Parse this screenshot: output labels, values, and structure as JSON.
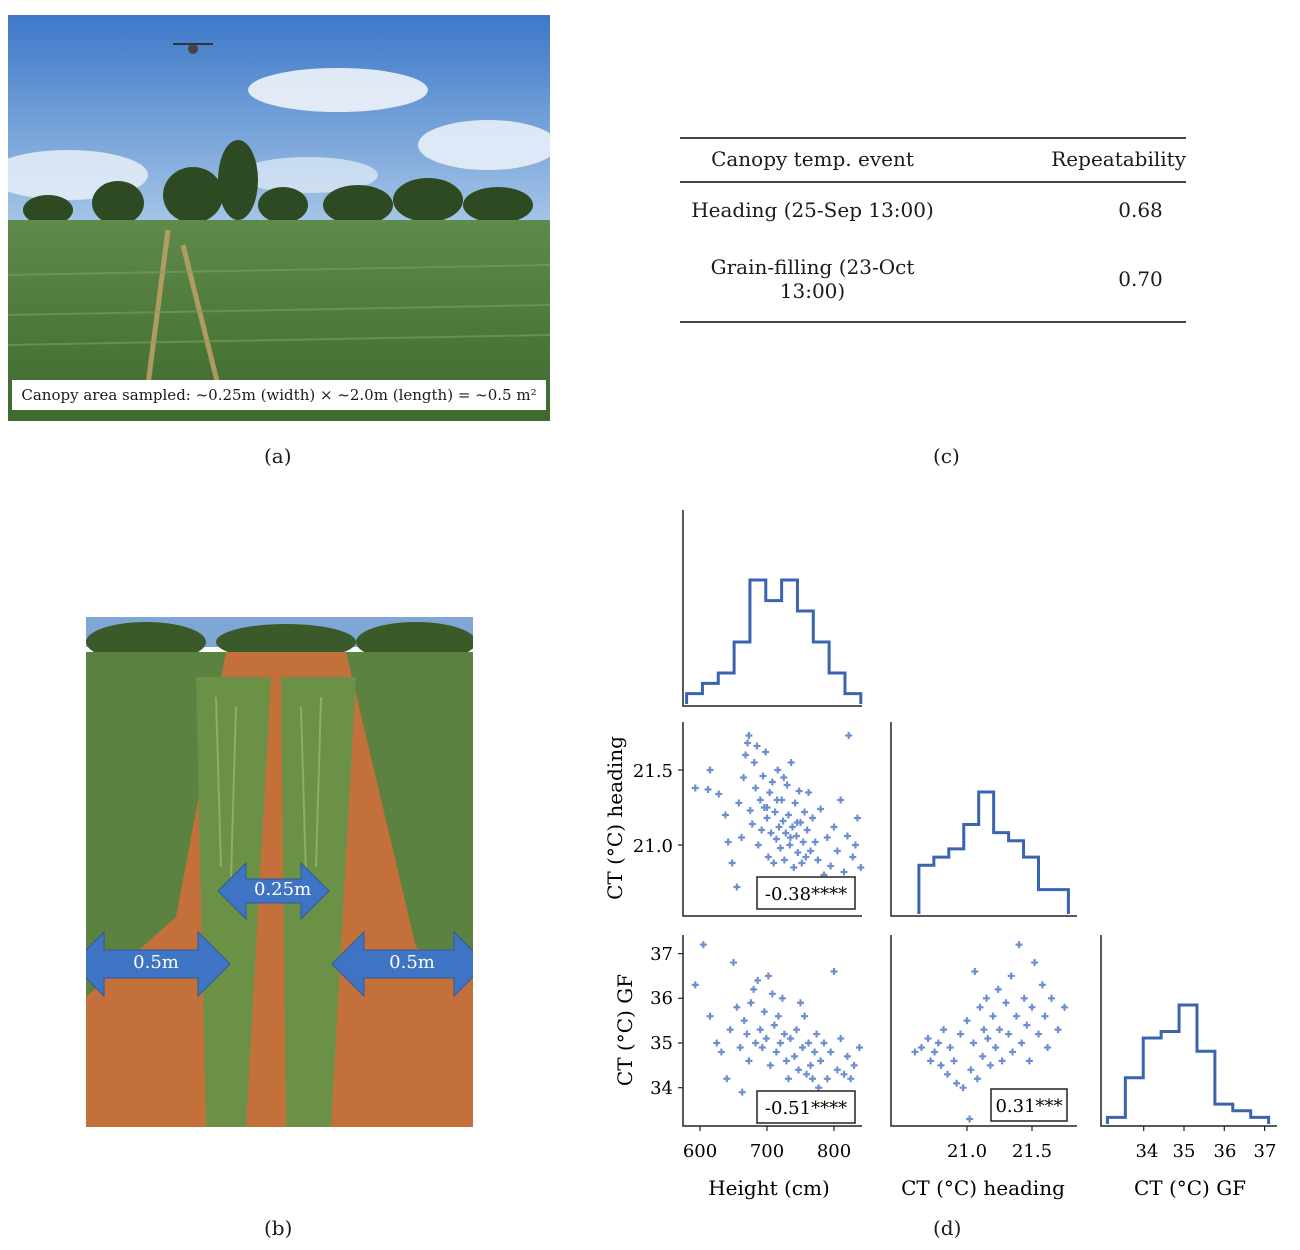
{
  "panel_labels": {
    "a": "(a)",
    "b": "(b)",
    "c": "(c)",
    "d": "(d)"
  },
  "photo_a": {
    "caption": "Canopy area sampled: ~0.25m (width) × ~2.0m (length) = ~0.5 m²"
  },
  "photo_b": {
    "arrow_center": "0.25m",
    "arrow_left": "0.5m",
    "arrow_right": "0.5m"
  },
  "table": {
    "headers": [
      "Canopy temp. event",
      "Repeatability"
    ],
    "rows": [
      {
        "event": "Heading (25-Sep 13:00)",
        "value": "0.68"
      },
      {
        "event": "Grain-filling (23-Oct 13:00)",
        "value": "0.70"
      }
    ]
  },
  "colors": {
    "series": "#3a63b0",
    "points": "#6e8fcf",
    "sky": "#5a8fd6",
    "soil": "#c4703a",
    "crop": "#4f7a3a"
  },
  "chart_data": {
    "type": "scatter",
    "variables": [
      "Height (cm)",
      "CT (°C) heading",
      "CT (°C) GF"
    ],
    "xlabels": [
      "Height (cm)",
      "CT (°C) heading",
      "CT (°C) GF"
    ],
    "ylabels": [
      "CT (°C) heading",
      "CT (°C) GF"
    ],
    "height_ticks": [
      "600",
      "700",
      "800"
    ],
    "heading_ticks": [
      "21.0",
      "21.5"
    ],
    "gf_ticks": [
      "34",
      "35",
      "36",
      "37"
    ],
    "correlations": {
      "height_vs_heading": "-0.38****",
      "height_vs_gf": "-0.51****",
      "heading_vs_gf": "0.31***"
    },
    "hist_height": {
      "range": [
        580,
        840
      ],
      "counts": [
        1,
        2,
        3,
        6,
        12,
        10,
        12,
        9,
        6,
        3,
        1
      ]
    },
    "hist_heading": {
      "range": [
        20.63,
        21.78
      ],
      "counts": [
        6,
        7,
        8,
        11,
        15,
        10,
        9,
        7,
        3,
        3
      ]
    },
    "hist_gf": {
      "range": [
        33.1,
        37.1
      ],
      "counts": [
        1,
        7,
        13,
        14,
        18,
        11,
        3,
        2,
        1
      ]
    },
    "scatter_height_heading": [
      [
        593,
        21.38
      ],
      [
        612,
        21.37
      ],
      [
        615,
        21.5
      ],
      [
        628,
        21.34
      ],
      [
        638,
        21.2
      ],
      [
        642,
        21.02
      ],
      [
        648,
        20.88
      ],
      [
        655,
        20.72
      ],
      [
        658,
        21.28
      ],
      [
        662,
        21.05
      ],
      [
        665,
        21.45
      ],
      [
        668,
        21.6
      ],
      [
        671,
        21.68
      ],
      [
        673,
        21.73
      ],
      [
        675,
        21.23
      ],
      [
        678,
        21.14
      ],
      [
        681,
        21.55
      ],
      [
        683,
        21.38
      ],
      [
        685,
        21.66
      ],
      [
        687,
        21.0
      ],
      [
        690,
        21.3
      ],
      [
        692,
        21.1
      ],
      [
        694,
        21.46
      ],
      [
        696,
        21.25
      ],
      [
        698,
        21.62
      ],
      [
        700,
        21.18
      ],
      [
        702,
        20.92
      ],
      [
        704,
        21.35
      ],
      [
        706,
        21.08
      ],
      [
        708,
        21.42
      ],
      [
        710,
        20.88
      ],
      [
        712,
        21.22
      ],
      [
        714,
        21.04
      ],
      [
        716,
        21.5
      ],
      [
        718,
        21.12
      ],
      [
        720,
        20.98
      ],
      [
        722,
        21.3
      ],
      [
        724,
        21.16
      ],
      [
        726,
        20.9
      ],
      [
        728,
        21.08
      ],
      [
        730,
        21.4
      ],
      [
        732,
        21.2
      ],
      [
        734,
        21.0
      ],
      [
        736,
        21.55
      ],
      [
        738,
        21.12
      ],
      [
        740,
        20.85
      ],
      [
        742,
        21.28
      ],
      [
        744,
        21.06
      ],
      [
        746,
        20.95
      ],
      [
        748,
        21.36
      ],
      [
        750,
        21.15
      ],
      [
        752,
        20.88
      ],
      [
        754,
        21.02
      ],
      [
        756,
        21.22
      ],
      [
        758,
        20.92
      ],
      [
        760,
        21.1
      ],
      [
        762,
        21.35
      ],
      [
        765,
        20.96
      ],
      [
        768,
        21.18
      ],
      [
        772,
        21.02
      ],
      [
        776,
        20.9
      ],
      [
        780,
        21.24
      ],
      [
        785,
        20.8
      ],
      [
        790,
        21.05
      ],
      [
        795,
        20.86
      ],
      [
        800,
        21.12
      ],
      [
        805,
        20.96
      ],
      [
        810,
        21.3
      ],
      [
        815,
        20.82
      ],
      [
        820,
        21.06
      ],
      [
        822,
        21.73
      ],
      [
        828,
        20.92
      ],
      [
        835,
        21.18
      ],
      [
        840,
        20.85
      ],
      [
        832,
        21.0
      ],
      [
        700,
        21.25
      ],
      [
        715,
        21.3
      ],
      [
        725,
        21.45
      ],
      [
        735,
        21.05
      ],
      [
        745,
        21.15
      ]
    ],
    "scatter_height_gf": [
      [
        593,
        36.3
      ],
      [
        605,
        37.2
      ],
      [
        615,
        35.6
      ],
      [
        625,
        35.0
      ],
      [
        632,
        34.8
      ],
      [
        640,
        34.2
      ],
      [
        645,
        35.3
      ],
      [
        650,
        36.8
      ],
      [
        655,
        35.8
      ],
      [
        660,
        34.9
      ],
      [
        663,
        33.9
      ],
      [
        666,
        35.5
      ],
      [
        670,
        35.2
      ],
      [
        673,
        34.6
      ],
      [
        676,
        35.9
      ],
      [
        680,
        36.2
      ],
      [
        683,
        35.0
      ],
      [
        686,
        36.4
      ],
      [
        690,
        35.3
      ],
      [
        693,
        34.9
      ],
      [
        696,
        35.7
      ],
      [
        699,
        35.1
      ],
      [
        702,
        36.5
      ],
      [
        705,
        34.5
      ],
      [
        708,
        36.1
      ],
      [
        711,
        35.4
      ],
      [
        714,
        34.8
      ],
      [
        717,
        35.6
      ],
      [
        720,
        35.0
      ],
      [
        723,
        36.0
      ],
      [
        726,
        35.2
      ],
      [
        729,
        34.6
      ],
      [
        732,
        34.2
      ],
      [
        735,
        35.1
      ],
      [
        738,
        33.8
      ],
      [
        741,
        34.7
      ],
      [
        744,
        35.3
      ],
      [
        747,
        34.4
      ],
      [
        750,
        35.9
      ],
      [
        753,
        34.9
      ],
      [
        756,
        35.6
      ],
      [
        759,
        34.3
      ],
      [
        762,
        35.0
      ],
      [
        765,
        34.5
      ],
      [
        768,
        34.2
      ],
      [
        771,
        34.8
      ],
      [
        774,
        35.2
      ],
      [
        777,
        34.0
      ],
      [
        780,
        34.6
      ],
      [
        785,
        35.0
      ],
      [
        790,
        34.2
      ],
      [
        795,
        34.8
      ],
      [
        800,
        36.6
      ],
      [
        805,
        34.4
      ],
      [
        810,
        35.1
      ],
      [
        815,
        34.3
      ],
      [
        820,
        34.7
      ],
      [
        825,
        34.2
      ],
      [
        830,
        34.5
      ],
      [
        838,
        34.9
      ]
    ],
    "scatter_heading_gf": [
      [
        20.6,
        34.8
      ],
      [
        20.65,
        34.9
      ],
      [
        20.7,
        35.1
      ],
      [
        20.72,
        34.6
      ],
      [
        20.75,
        34.8
      ],
      [
        20.78,
        35.0
      ],
      [
        20.8,
        34.5
      ],
      [
        20.82,
        35.3
      ],
      [
        20.85,
        34.3
      ],
      [
        20.87,
        34.9
      ],
      [
        20.9,
        34.6
      ],
      [
        20.92,
        34.1
      ],
      [
        20.95,
        35.2
      ],
      [
        20.97,
        34.0
      ],
      [
        21.0,
        35.5
      ],
      [
        21.02,
        33.3
      ],
      [
        21.03,
        34.4
      ],
      [
        21.05,
        35.0
      ],
      [
        21.06,
        36.6
      ],
      [
        21.08,
        34.2
      ],
      [
        21.1,
        35.8
      ],
      [
        21.12,
        34.7
      ],
      [
        21.13,
        35.3
      ],
      [
        21.15,
        36.0
      ],
      [
        21.16,
        35.1
      ],
      [
        21.18,
        34.5
      ],
      [
        21.2,
        35.6
      ],
      [
        21.22,
        34.9
      ],
      [
        21.24,
        36.2
      ],
      [
        21.25,
        35.3
      ],
      [
        21.27,
        34.6
      ],
      [
        21.3,
        35.9
      ],
      [
        21.32,
        35.2
      ],
      [
        21.34,
        36.5
      ],
      [
        21.35,
        34.8
      ],
      [
        21.38,
        35.6
      ],
      [
        21.4,
        37.2
      ],
      [
        21.42,
        35.0
      ],
      [
        21.44,
        36.0
      ],
      [
        21.46,
        35.4
      ],
      [
        21.48,
        34.6
      ],
      [
        21.5,
        35.8
      ],
      [
        21.52,
        36.8
      ],
      [
        21.55,
        35.2
      ],
      [
        21.58,
        36.3
      ],
      [
        21.6,
        35.6
      ],
      [
        21.62,
        34.9
      ],
      [
        21.65,
        36.0
      ],
      [
        21.7,
        35.3
      ],
      [
        21.75,
        35.8
      ]
    ]
  }
}
